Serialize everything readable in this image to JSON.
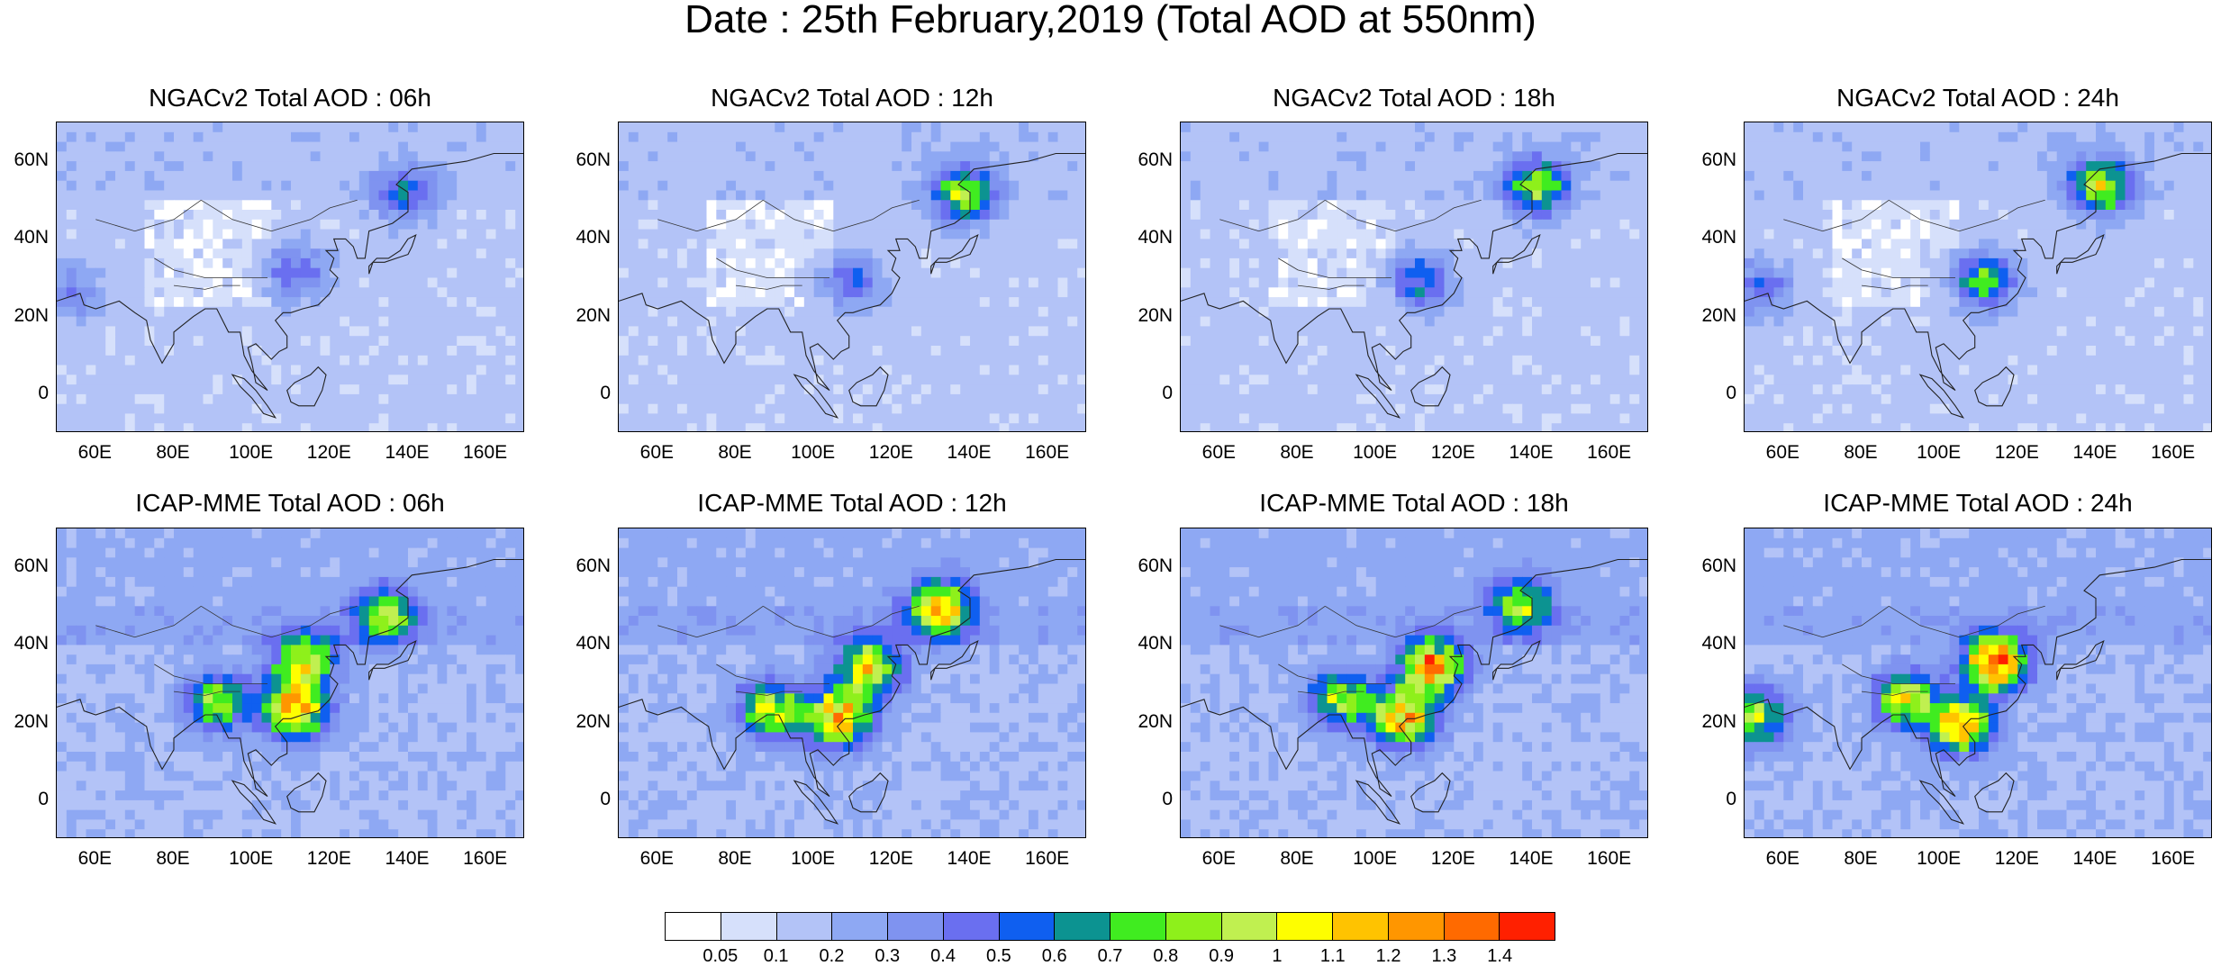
{
  "title": "Date : 25th February,2019 (Total AOD at 550nm)",
  "chart_data": {
    "type": "heatmap",
    "variable": "Total AOD at 550nm",
    "projection": "lat-lon",
    "xlim": [
      50,
      170
    ],
    "ylim": [
      -10,
      70
    ],
    "x_ticks": [
      "60E",
      "80E",
      "100E",
      "120E",
      "140E",
      "160E"
    ],
    "y_ticks": [
      "60N",
      "40N",
      "20N",
      "0"
    ],
    "panels": [
      {
        "title": "NGACv2 Total AOD : 06h",
        "model": "NGACv2",
        "lead": "06h",
        "hotspots": [
          {
            "lon": 110,
            "lat": 30,
            "aod": 0.45
          },
          {
            "lon": 138,
            "lat": 50,
            "aod": 0.5
          },
          {
            "lon": 52,
            "lat": 25,
            "aod": 0.35
          }
        ]
      },
      {
        "title": "NGACv2 Total AOD : 12h",
        "model": "NGACv2",
        "lead": "12h",
        "hotspots": [
          {
            "lon": 108,
            "lat": 28,
            "aod": 0.45
          },
          {
            "lon": 137,
            "lat": 50,
            "aod": 0.8
          }
        ]
      },
      {
        "title": "NGACv2 Total AOD : 18h",
        "model": "NGACv2",
        "lead": "18h",
        "hotspots": [
          {
            "lon": 110,
            "lat": 28,
            "aod": 0.55
          },
          {
            "lon": 140,
            "lat": 52,
            "aod": 0.85
          }
        ]
      },
      {
        "title": "NGACv2 Total AOD : 24h",
        "model": "NGACv2",
        "lead": "24h",
        "hotspots": [
          {
            "lon": 110,
            "lat": 28,
            "aod": 0.7
          },
          {
            "lon": 140,
            "lat": 52,
            "aod": 0.9
          },
          {
            "lon": 52,
            "lat": 26,
            "aod": 0.45
          }
        ]
      },
      {
        "title": "ICAP-MME Total AOD : 06h",
        "model": "ICAP-MME",
        "lead": "06h",
        "hotspots": [
          {
            "lon": 112,
            "lat": 35,
            "aod": 0.95
          },
          {
            "lon": 110,
            "lat": 22,
            "aod": 1.2
          },
          {
            "lon": 90,
            "lat": 24,
            "aod": 0.85
          },
          {
            "lon": 133,
            "lat": 46,
            "aod": 0.8
          }
        ]
      },
      {
        "title": "ICAP-MME Total AOD : 12h",
        "model": "ICAP-MME",
        "lead": "12h",
        "hotspots": [
          {
            "lon": 113,
            "lat": 33,
            "aod": 1.05
          },
          {
            "lon": 105,
            "lat": 20,
            "aod": 1.2
          },
          {
            "lon": 88,
            "lat": 22,
            "aod": 0.9
          },
          {
            "lon": 131,
            "lat": 48,
            "aod": 1.1
          }
        ]
      },
      {
        "title": "ICAP-MME Total AOD : 18h",
        "model": "ICAP-MME",
        "lead": "18h",
        "hotspots": [
          {
            "lon": 113,
            "lat": 33,
            "aod": 1.2
          },
          {
            "lon": 106,
            "lat": 20,
            "aod": 1.1
          },
          {
            "lon": 90,
            "lat": 25,
            "aod": 0.9
          },
          {
            "lon": 136,
            "lat": 49,
            "aod": 0.8
          }
        ]
      },
      {
        "title": "ICAP-MME Total AOD : 24h",
        "model": "ICAP-MME",
        "lead": "24h",
        "hotspots": [
          {
            "lon": 113,
            "lat": 34,
            "aod": 1.35
          },
          {
            "lon": 104,
            "lat": 18,
            "aod": 1.1
          },
          {
            "lon": 90,
            "lat": 25,
            "aod": 0.9
          },
          {
            "lon": 52,
            "lat": 20,
            "aod": 0.8
          }
        ]
      }
    ],
    "colorbar": {
      "levels": [
        "0.05",
        "0.1",
        "0.2",
        "0.3",
        "0.4",
        "0.5",
        "0.6",
        "0.7",
        "0.8",
        "0.9",
        "1",
        "1.1",
        "1.2",
        "1.3",
        "1.4"
      ],
      "colors": [
        "#ffffff",
        "#d6e0fb",
        "#b3c3f7",
        "#8ea8f3",
        "#7f93f0",
        "#6a6ff0",
        "#0f5ff0",
        "#0c9391",
        "#40ec20",
        "#8ef01b",
        "#c0f050",
        "#fefe00",
        "#ffc300",
        "#ff9600",
        "#ff6a00",
        "#ff2000"
      ]
    }
  }
}
